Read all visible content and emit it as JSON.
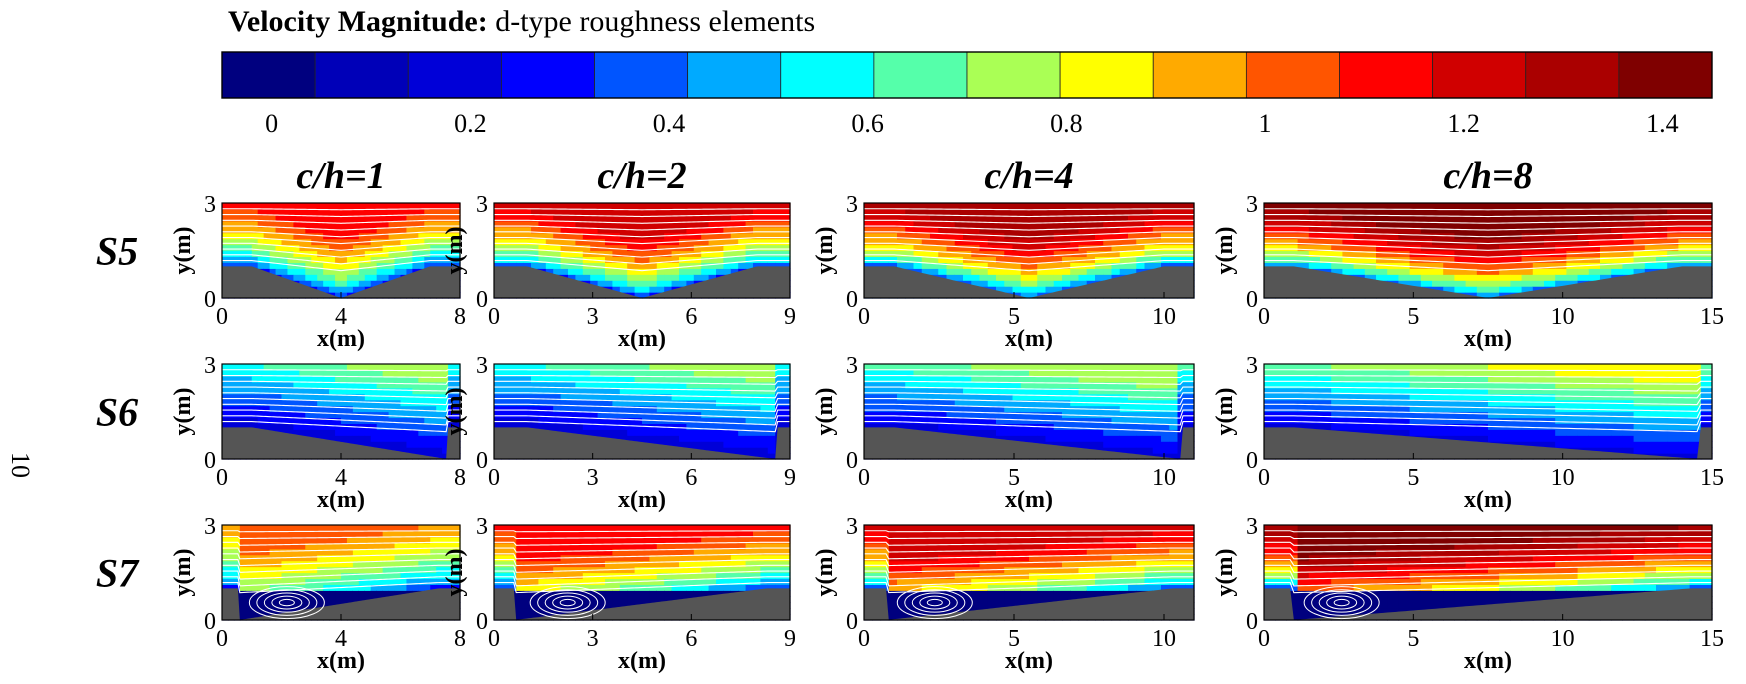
{
  "title": {
    "bold": "Velocity Magnitude:",
    "rest": " d-type roughness elements"
  },
  "page_number": "10",
  "colorbar": {
    "colors": [
      "#00007f",
      "#0000b8",
      "#0000d8",
      "#0000ff",
      "#0055ff",
      "#00aaff",
      "#00ffff",
      "#55ffaa",
      "#aaff55",
      "#ffff00",
      "#ffaa00",
      "#ff5500",
      "#ff0000",
      "#d00000",
      "#aa0000",
      "#7f0000"
    ],
    "tick_labels": [
      "0",
      "0.2",
      "0.4",
      "0.6",
      "0.8",
      "1",
      "1.2",
      "1.4"
    ],
    "tick_values": [
      0,
      0.2,
      0.4,
      0.6,
      0.8,
      1,
      1.2,
      1.4
    ]
  },
  "chart_data": {
    "type": "heatmap",
    "quantity": "Velocity Magnitude",
    "range": [
      -0.05,
      1.45
    ],
    "columns": [
      {
        "label": "c/h=1",
        "xmax": 8,
        "xticks": [
          0,
          4,
          8
        ]
      },
      {
        "label": "c/h=2",
        "xmax": 9,
        "xticks": [
          0,
          3,
          6,
          9
        ]
      },
      {
        "label": "c/h=4",
        "xmax": 11,
        "xticks": [
          0,
          5,
          10
        ]
      },
      {
        "label": "c/h=8",
        "xmax": 15,
        "xticks": [
          0,
          5,
          10,
          15
        ]
      }
    ],
    "rows": [
      {
        "label": "S5",
        "cavity": "symmetric V-groove",
        "top_speed": [
          1.15,
          1.25,
          1.35,
          1.45
        ]
      },
      {
        "label": "S6",
        "cavity": "sloped ramp down, vertical step up",
        "top_speed": [
          0.7,
          0.7,
          0.75,
          0.8
        ]
      },
      {
        "label": "S7",
        "cavity": "vertical step down, sloped ramp up",
        "top_speed": [
          1.0,
          1.15,
          1.25,
          1.4
        ]
      }
    ],
    "ylim": [
      0,
      3
    ],
    "yticks": [
      0,
      3
    ],
    "wall_height": 1,
    "xlabel": "x(m)",
    "ylabel": "y(m)"
  }
}
